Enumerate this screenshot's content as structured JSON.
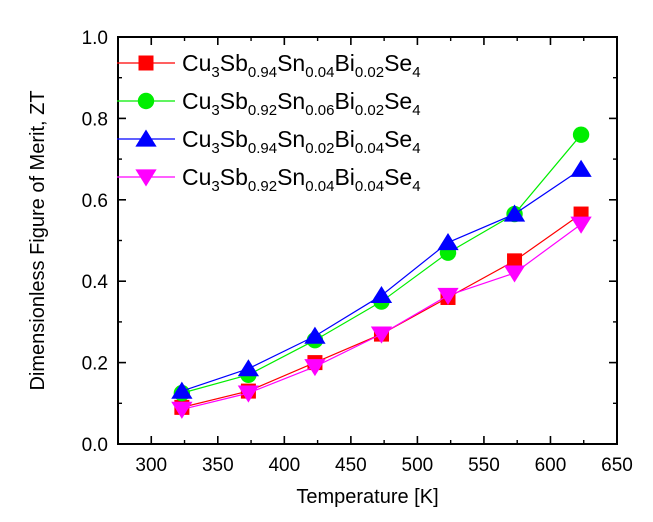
{
  "chart_data": {
    "type": "line",
    "xlabel": "Temperature [K]",
    "ylabel": "Dimensionless Figure of Merit, ZT",
    "xlim": [
      275,
      650
    ],
    "ylim": [
      0.0,
      1.0
    ],
    "x_ticks": [
      300,
      350,
      400,
      450,
      500,
      550,
      600,
      650
    ],
    "y_ticks": [
      0.0,
      0.2,
      0.4,
      0.6,
      0.8,
      1.0
    ],
    "x_tick_labels": [
      "300",
      "350",
      "400",
      "450",
      "500",
      "550",
      "600",
      "650"
    ],
    "y_tick_labels": [
      "0.0",
      "0.2",
      "0.4",
      "0.6",
      "0.8",
      "1.0"
    ],
    "x": [
      323,
      373,
      423,
      473,
      523,
      573,
      623
    ],
    "legend_position": "top-left",
    "grid": false,
    "series": [
      {
        "name_parts": [
          [
            "Cu",
            false
          ],
          [
            "3",
            true
          ],
          [
            "Sb",
            false
          ],
          [
            "0.94",
            true
          ],
          [
            "Sn",
            false
          ],
          [
            "0.04",
            true
          ],
          [
            "Bi",
            false
          ],
          [
            "0.02",
            true
          ],
          [
            "Se",
            false
          ],
          [
            "4",
            true
          ]
        ],
        "values": [
          0.09,
          0.13,
          0.2,
          0.27,
          0.36,
          0.45,
          0.565
        ],
        "marker": "square",
        "color": "#ff0000"
      },
      {
        "name_parts": [
          [
            "Cu",
            false
          ],
          [
            "3",
            true
          ],
          [
            "Sb",
            false
          ],
          [
            "0.92",
            true
          ],
          [
            "Sn",
            false
          ],
          [
            "0.06",
            true
          ],
          [
            "Bi",
            false
          ],
          [
            "0.02",
            true
          ],
          [
            "Se",
            false
          ],
          [
            "4",
            true
          ]
        ],
        "values": [
          0.125,
          0.17,
          0.255,
          0.35,
          0.47,
          0.565,
          0.76
        ],
        "marker": "circle",
        "color": "#00ee00"
      },
      {
        "name_parts": [
          [
            "Cu",
            false
          ],
          [
            "3",
            true
          ],
          [
            "Sb",
            false
          ],
          [
            "0.94",
            true
          ],
          [
            "Sn",
            false
          ],
          [
            "0.02",
            true
          ],
          [
            "Bi",
            false
          ],
          [
            "0.04",
            true
          ],
          [
            "Se",
            false
          ],
          [
            "4",
            true
          ]
        ],
        "values": [
          0.13,
          0.185,
          0.265,
          0.365,
          0.495,
          0.565,
          0.675
        ],
        "marker": "triangle-up",
        "color": "#0000ff"
      },
      {
        "name_parts": [
          [
            "Cu",
            false
          ],
          [
            "3",
            true
          ],
          [
            "Sb",
            false
          ],
          [
            "0.92",
            true
          ],
          [
            "Sn",
            false
          ],
          [
            "0.04",
            true
          ],
          [
            "Bi",
            false
          ],
          [
            "0.04",
            true
          ],
          [
            "Se",
            false
          ],
          [
            "4",
            true
          ]
        ],
        "values": [
          0.085,
          0.125,
          0.19,
          0.27,
          0.365,
          0.42,
          0.54
        ],
        "marker": "triangle-down",
        "color": "#ff00ff"
      }
    ]
  }
}
